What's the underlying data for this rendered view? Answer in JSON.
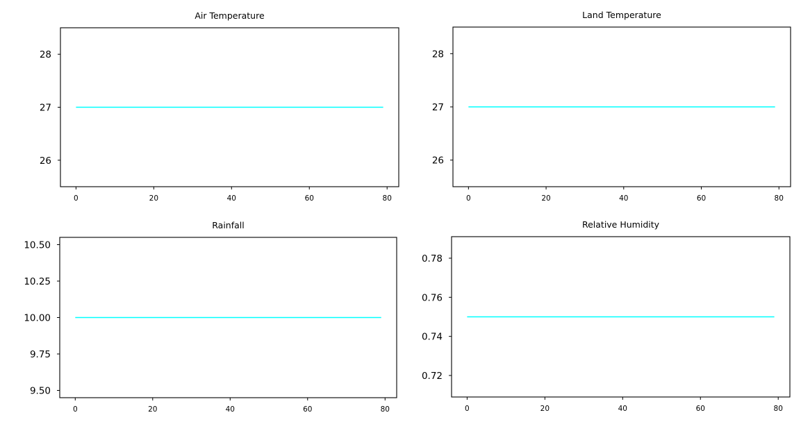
{
  "figure": {
    "background": "#ffffff",
    "series_color": "#00ffff"
  },
  "chart_data": [
    {
      "type": "line",
      "title": "Air Temperature",
      "xlabel": "",
      "ylabel": "",
      "xlim": [
        -4,
        83
      ],
      "ylim": [
        25.5,
        28.5
      ],
      "xticks": [
        0,
        20,
        40,
        60,
        80
      ],
      "yticks": [
        26,
        27,
        28
      ],
      "ytick_labels": [
        "26",
        "27",
        "28"
      ],
      "x_start": 0,
      "x_end": 79,
      "series": [
        {
          "value": 27,
          "color": "#00ffff"
        }
      ]
    },
    {
      "type": "line",
      "title": "Land Temperature",
      "xlabel": "",
      "ylabel": "",
      "xlim": [
        -4,
        83
      ],
      "ylim": [
        25.5,
        28.5
      ],
      "xticks": [
        0,
        20,
        40,
        60,
        80
      ],
      "yticks": [
        26,
        27,
        28
      ],
      "ytick_labels": [
        "26",
        "27",
        "28"
      ],
      "x_start": 0,
      "x_end": 79,
      "series": [
        {
          "value": 27,
          "color": "#00ffff"
        }
      ]
    },
    {
      "type": "line",
      "title": "Rainfall",
      "xlabel": "",
      "ylabel": "",
      "xlim": [
        -4,
        83
      ],
      "ylim": [
        9.45,
        10.55
      ],
      "xticks": [
        0,
        20,
        40,
        60,
        80
      ],
      "yticks": [
        9.5,
        9.75,
        10.0,
        10.25,
        10.5
      ],
      "ytick_labels": [
        "9.50",
        "9.75",
        "10.00",
        "10.25",
        "10.50"
      ],
      "x_start": 0,
      "x_end": 79,
      "series": [
        {
          "value": 10.0,
          "color": "#00ffff"
        }
      ]
    },
    {
      "type": "line",
      "title": "Relative Humidity",
      "xlabel": "",
      "ylabel": "",
      "xlim": [
        -4,
        83
      ],
      "ylim": [
        0.709,
        0.791
      ],
      "xticks": [
        0,
        20,
        40,
        60,
        80
      ],
      "yticks": [
        0.72,
        0.74,
        0.76,
        0.78
      ],
      "ytick_labels": [
        "0.72",
        "0.74",
        "0.76",
        "0.78"
      ],
      "x_start": 0,
      "x_end": 79,
      "series": [
        {
          "value": 0.75,
          "color": "#00ffff"
        }
      ]
    }
  ]
}
